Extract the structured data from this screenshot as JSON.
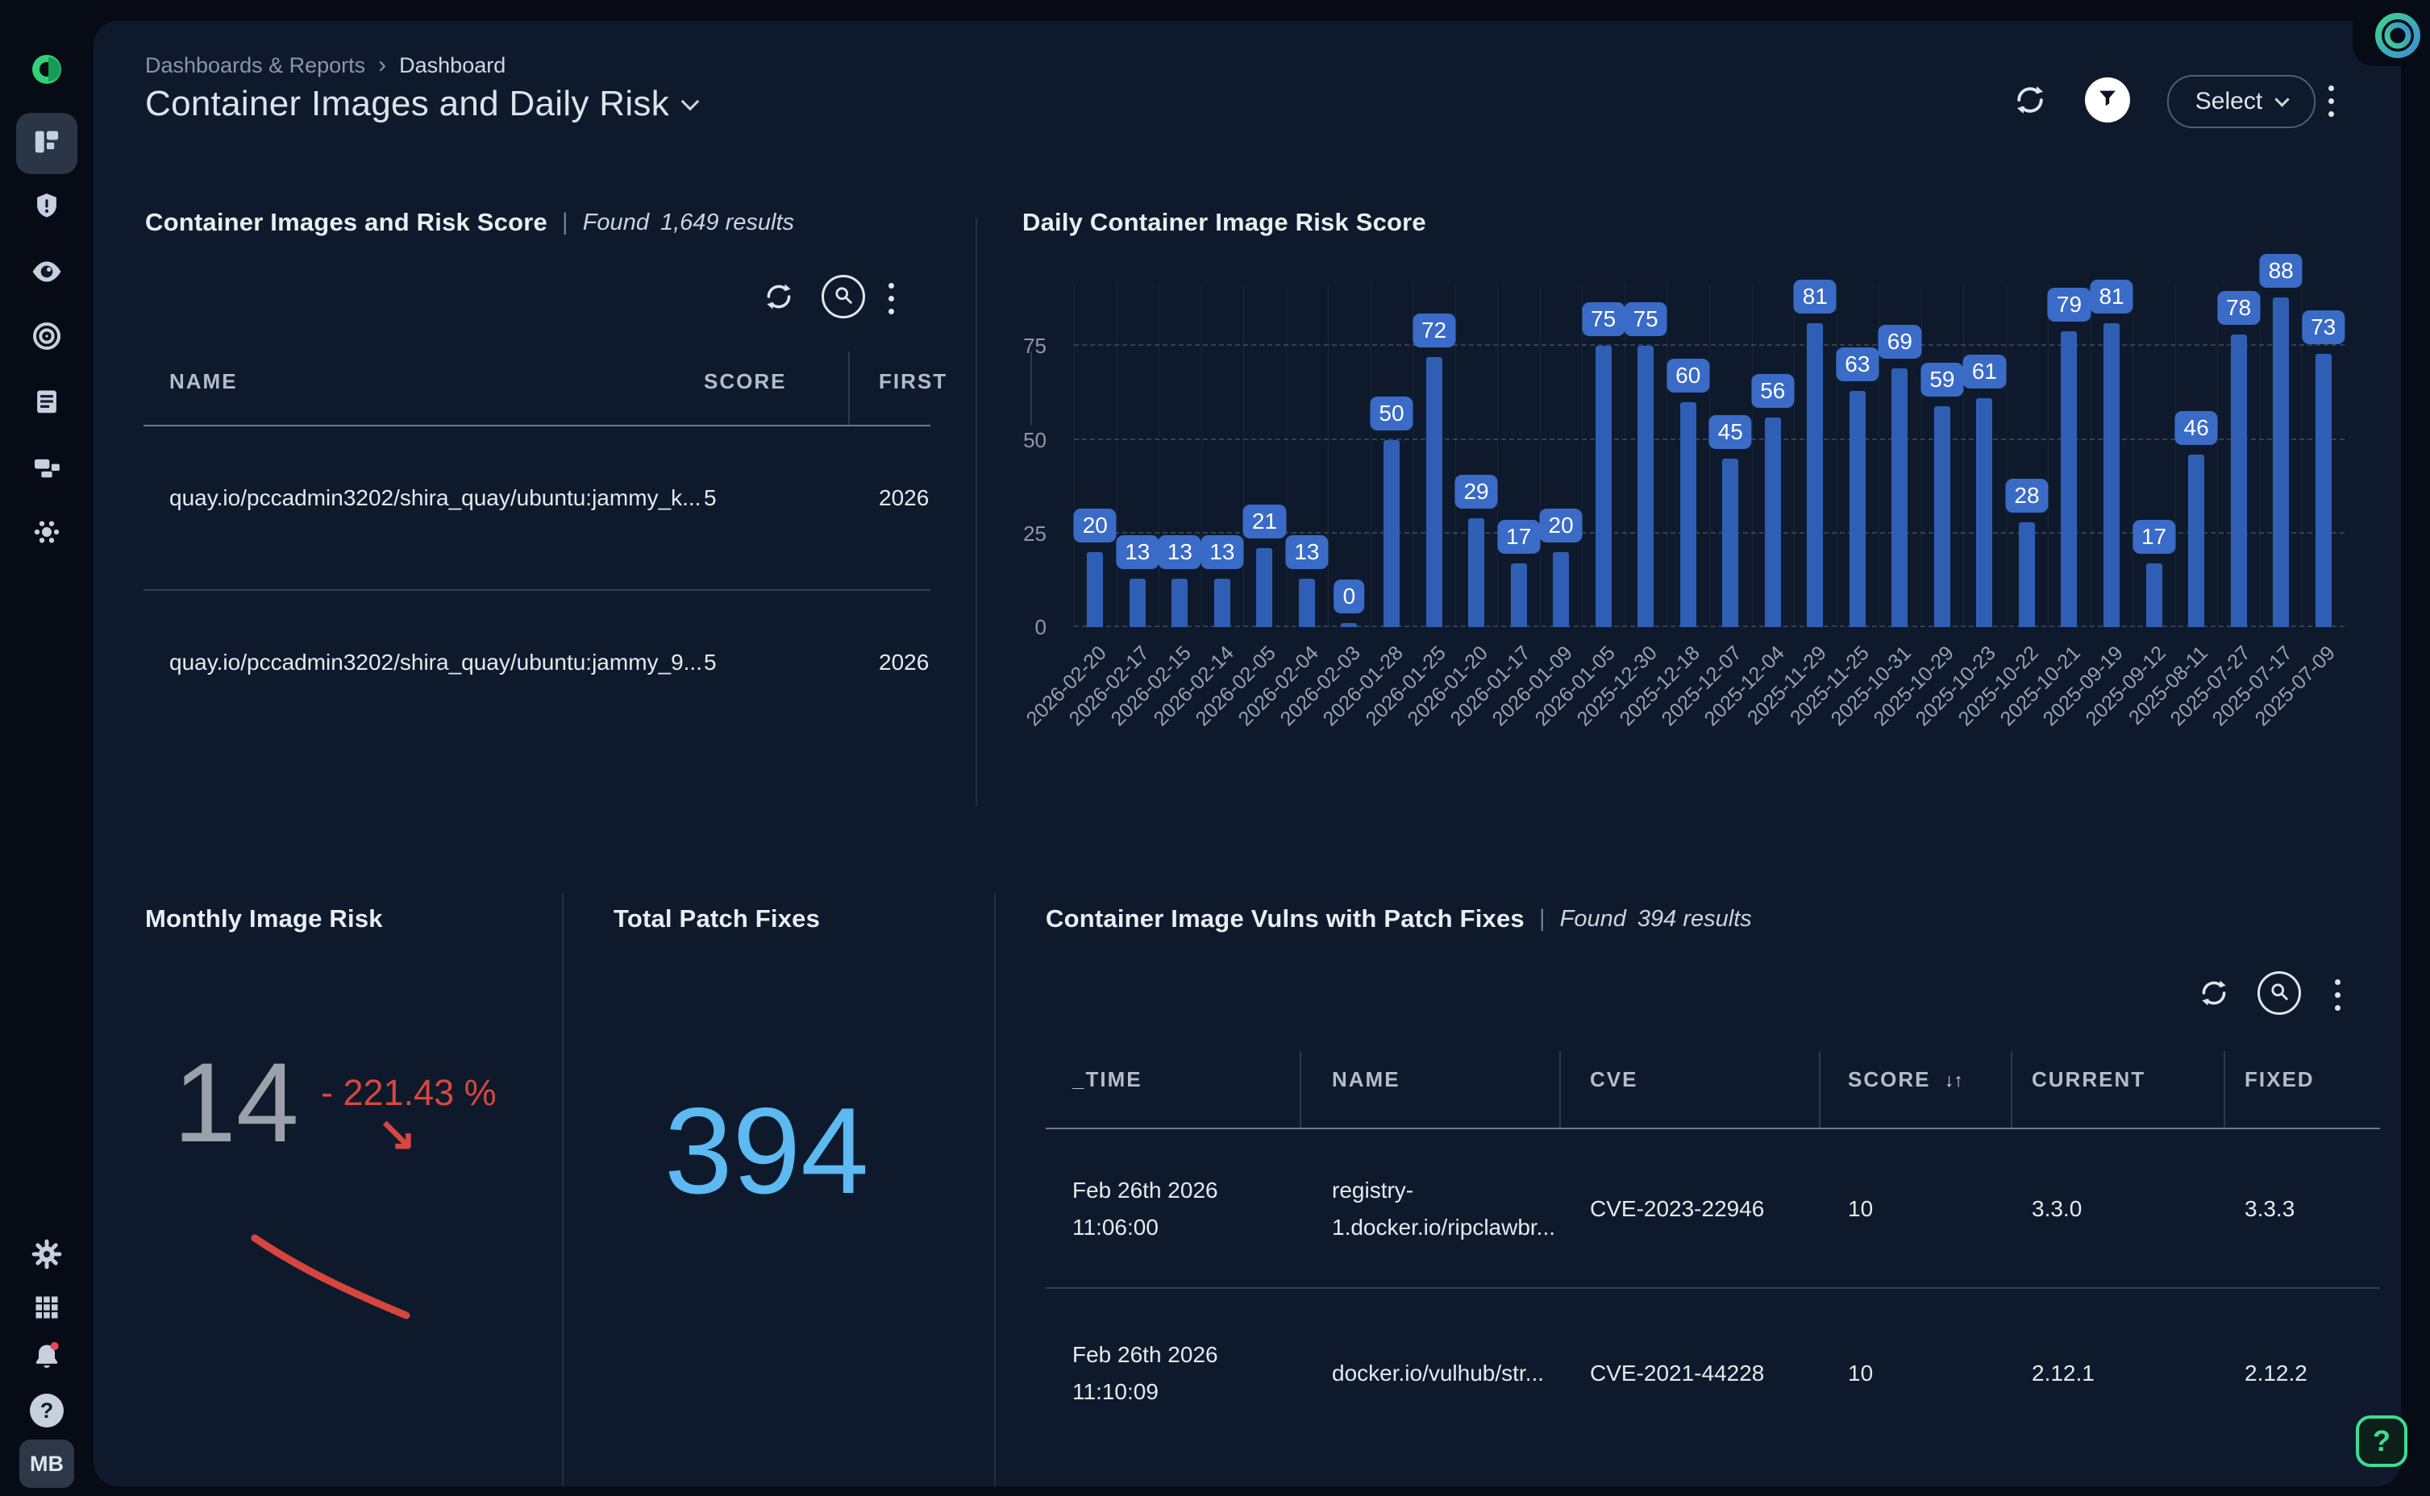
{
  "breadcrumb": {
    "parent": "Dashboards & Reports",
    "separator": "›",
    "current": "Dashboard"
  },
  "page_title": "Container Images and Daily Risk",
  "header_actions": {
    "select_label": "Select"
  },
  "sidebar": {
    "avatar_initials": "MB",
    "help_glyph": "?"
  },
  "images_panel": {
    "title": "Container Images and Risk Score",
    "separator": "|",
    "found_label": "Found",
    "results_text": "1,649 results",
    "columns": [
      "NAME",
      "SCORE",
      "FIRST"
    ],
    "rows": [
      {
        "name": "quay.io/pccadmin3202/shira_quay/ubuntu:jammy_k...",
        "score": "5",
        "first_found": "2026"
      },
      {
        "name": "quay.io/pccadmin3202/shira_quay/ubuntu:jammy_9...",
        "score": "5",
        "first_found": "2026"
      }
    ]
  },
  "chart_data": {
    "type": "bar",
    "title": "Daily Container Image Risk Score",
    "categories": [
      "2026-02-20",
      "2026-02-17",
      "2026-02-15",
      "2026-02-14",
      "2026-02-05",
      "2026-02-04",
      "2026-02-03",
      "2026-01-28",
      "2026-01-25",
      "2026-01-20",
      "2026-01-17",
      "2026-01-09",
      "2026-01-05",
      "2025-12-30",
      "2025-12-18",
      "2025-12-07",
      "2025-12-04",
      "2025-11-29",
      "2025-11-25",
      "2025-10-31",
      "2025-10-29",
      "2025-10-23",
      "2025-10-22",
      "2025-10-21",
      "2025-09-19",
      "2025-09-12",
      "2025-08-11",
      "2025-07-27",
      "2025-07-17",
      "2025-07-09"
    ],
    "values": [
      20,
      13,
      13,
      13,
      21,
      13,
      0,
      50,
      72,
      29,
      17,
      20,
      75,
      75,
      60,
      45,
      56,
      81,
      63,
      69,
      59,
      61,
      28,
      79,
      81,
      17,
      46,
      78,
      88,
      73
    ],
    "y_ticks": [
      0,
      25,
      50,
      75
    ],
    "ylim": [
      0,
      92
    ],
    "xlabel": "",
    "ylabel": "",
    "grid": "dashed-horizontal",
    "legend": "none",
    "bar_color": "#2f5fb5",
    "bubble_color": "#3a6bc7"
  },
  "monthly_panel": {
    "title": "Monthly Image Risk",
    "value": "14",
    "delta": "- 221.43 %",
    "trend_glyph": "↘",
    "trend": "down"
  },
  "patch_panel": {
    "title": "Total Patch Fixes",
    "value": "394"
  },
  "vulns_panel": {
    "title": "Container Image Vulns with Patch Fixes",
    "separator": "|",
    "found_label": "Found",
    "results_text": "394 results",
    "columns": [
      "_TIME",
      "NAME",
      "CVE",
      "SCORE",
      "CURRENT",
      "FIXED"
    ],
    "sort_icon": "↓↑",
    "rows": [
      {
        "time": "Feb 26th 2026 11:06:00",
        "name": "registry-1.docker.io/ripclawbr...",
        "cve": "CVE-2023-22946",
        "score": "10",
        "current": "3.3.0",
        "fixed": "3.3.3"
      },
      {
        "time": "Feb 26th 2026 11:10:09",
        "name": "docker.io/vulhub/str...",
        "cve": "CVE-2021-44228",
        "score": "10",
        "current": "2.12.1",
        "fixed": "2.12.2"
      }
    ]
  },
  "help_button": {
    "label": "?"
  },
  "colors": {
    "page_bg": "#060b15",
    "card_bg": "#0e1a2c",
    "accent_blue": "#2f5fb5",
    "light_blue": "#5cb9f2",
    "red": "#d8473f",
    "green": "#3ddc97"
  }
}
